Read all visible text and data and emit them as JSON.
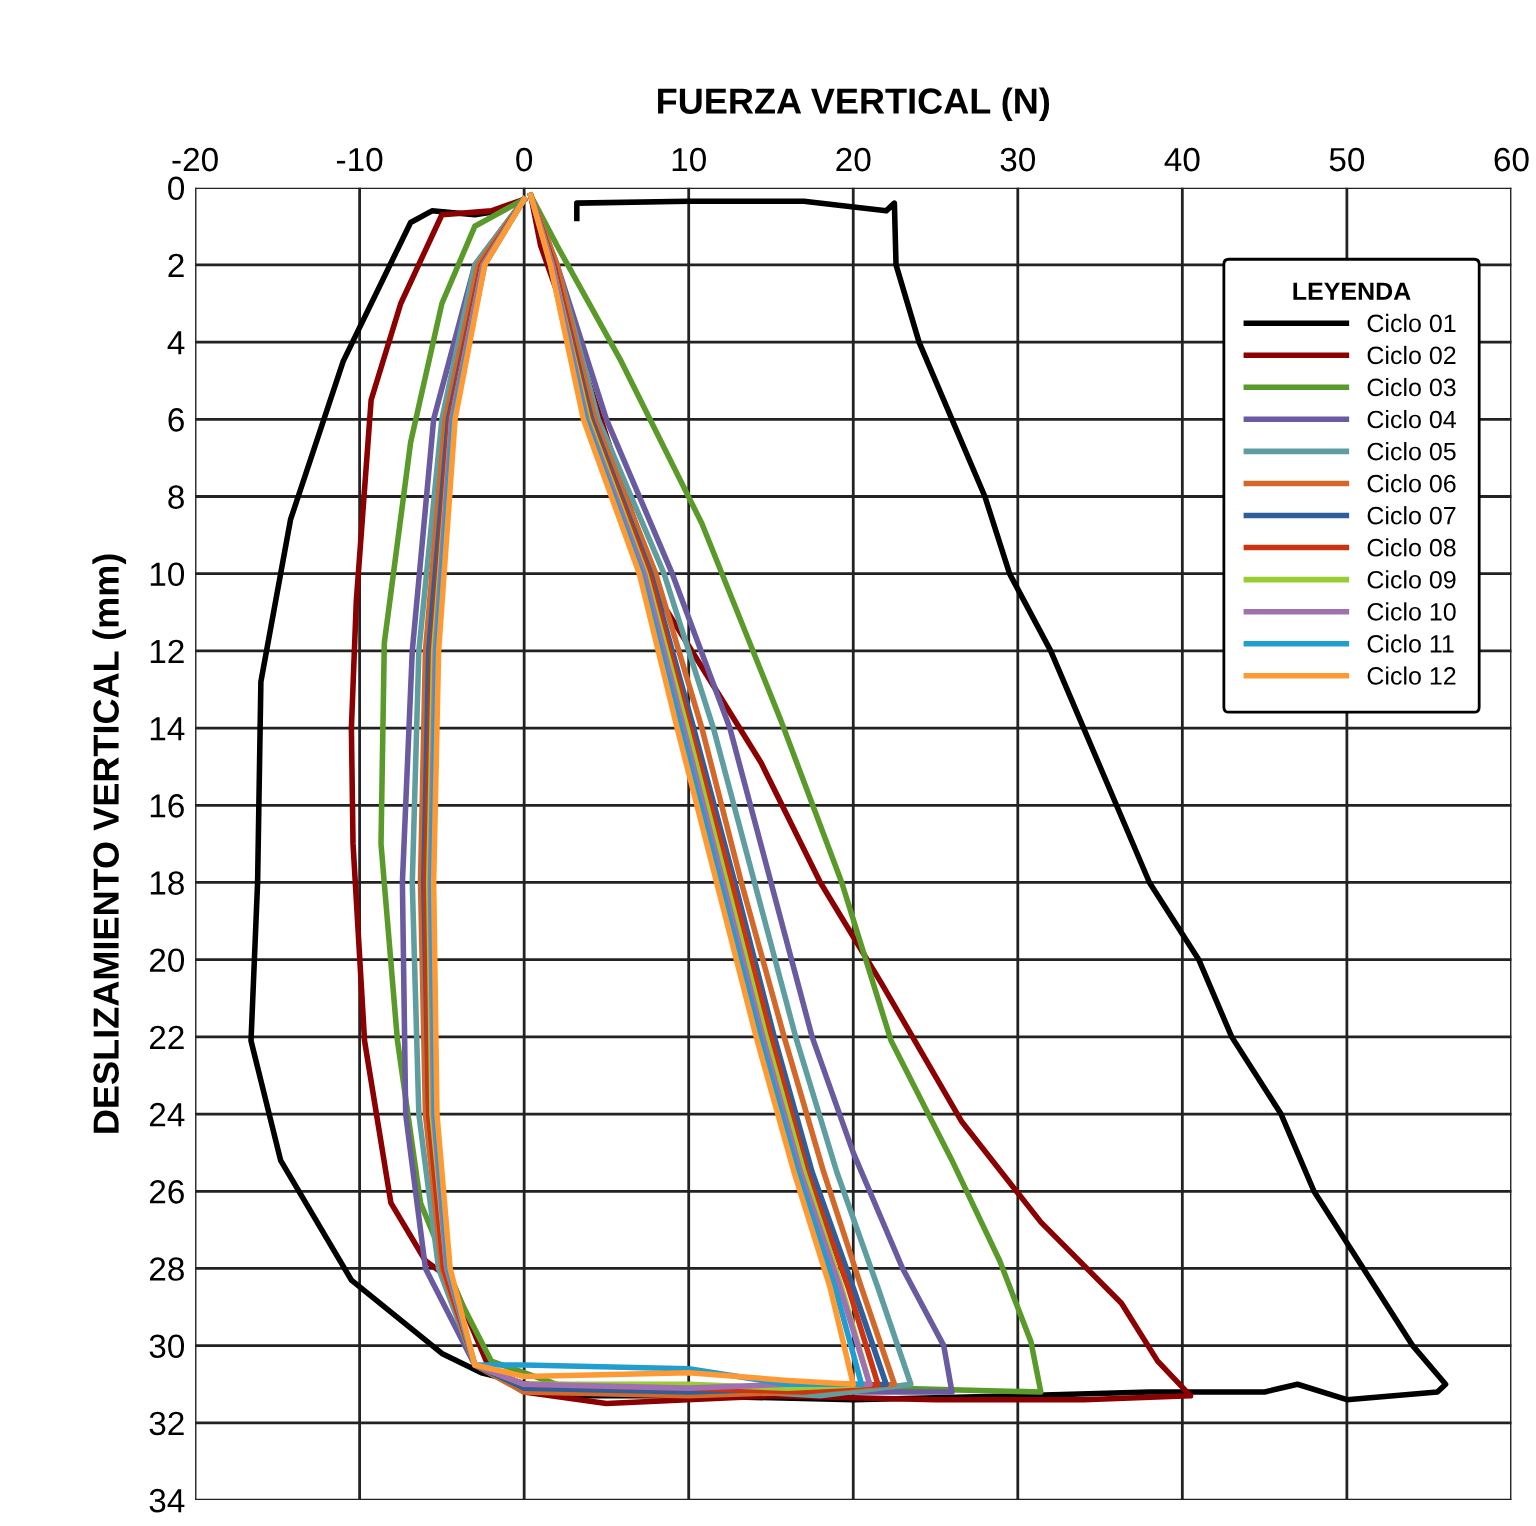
{
  "chart_data": {
    "type": "line",
    "xlabel": "FUERZA VERTICAL (N)",
    "ylabel": "DESLIZAMIENTO VERTICAL (mm)",
    "legend_title": "LEYENDA",
    "xlim": [
      -20,
      60
    ],
    "xticks": [
      -20,
      -10,
      0,
      10,
      20,
      30,
      40,
      50,
      60
    ],
    "ylim": [
      34,
      0
    ],
    "yticks": [
      0,
      2,
      4,
      6,
      8,
      10,
      12,
      14,
      16,
      18,
      20,
      22,
      24,
      26,
      28,
      30,
      32,
      34
    ],
    "grid": true,
    "legend": "top right",
    "marker": "none",
    "line_style": "solid",
    "series": [
      {
        "name": "Ciclo 01",
        "color": "#000000",
        "x": [
          3.2,
          3.2,
          10,
          17,
          22,
          22.5,
          22.6,
          24,
          26,
          28,
          29.5,
          32,
          34,
          36,
          38,
          41,
          43,
          46,
          48,
          51,
          54,
          56,
          55.5,
          50,
          47,
          45,
          38,
          30,
          20,
          10,
          3,
          -2.6,
          -5,
          -10.5,
          -14.8,
          -16.6,
          -16.2,
          -16,
          -14.2,
          -11,
          -6.9,
          -5.6,
          -3,
          -1.5
        ],
        "values": [
          0.8,
          0.4,
          0.35,
          0.35,
          0.6,
          0.4,
          2,
          4,
          6,
          8,
          10,
          12,
          14,
          16,
          18,
          20,
          22,
          24,
          26,
          28,
          30,
          31,
          31.2,
          31.4,
          31,
          31.2,
          31.2,
          31.3,
          31.4,
          31.3,
          31.3,
          30.7,
          30.2,
          28.3,
          25.2,
          22.1,
          18,
          12.8,
          8.6,
          4.5,
          0.9,
          0.6,
          0.7,
          0.6
        ]
      },
      {
        "name": "Ciclo 02",
        "color": "#8b0000",
        "x": [
          0,
          -2,
          -5,
          -7.5,
          -9.3,
          -10.2,
          -10.5,
          -10.4,
          -9.7,
          -8.1,
          -6,
          -4.4,
          -2,
          0,
          5,
          15,
          25,
          34,
          40.5,
          38.5,
          36.3,
          31.4,
          26.6,
          21.7,
          18,
          14.4,
          8.3,
          3.5,
          1,
          0.4
        ],
        "values": [
          0.3,
          0.6,
          0.7,
          3,
          5.5,
          10.7,
          14,
          17,
          22.1,
          26.3,
          27.8,
          28.3,
          30.7,
          31.2,
          31.5,
          31.3,
          31.4,
          31.4,
          31.3,
          30.4,
          28.9,
          26.8,
          24.2,
          20.6,
          18,
          14.9,
          10.7,
          4.5,
          1.5,
          0.2
        ]
      },
      {
        "name": "Ciclo 03",
        "color": "#5a9a2a",
        "x": [
          0,
          -3,
          -5,
          -6.9,
          -8.5,
          -8.7,
          -7.7,
          -6.3,
          -3.8,
          -2,
          2,
          12,
          22,
          31.4,
          30.8,
          28.9,
          26,
          22.3,
          19.3,
          15.6,
          10.8,
          5.9,
          2,
          0.4
        ],
        "values": [
          0.3,
          1,
          3,
          6.6,
          11.8,
          17,
          22.1,
          26.3,
          28.9,
          30.4,
          31,
          31.2,
          31.1,
          31.2,
          29.9,
          27.8,
          25.2,
          22.1,
          18,
          13.8,
          8.7,
          4.5,
          1.5,
          0.2
        ]
      },
      {
        "name": "Ciclo 04",
        "color": "#6a5a9f",
        "x": [
          0,
          -3,
          -5.5,
          -6.8,
          -7.4,
          -7.2,
          -6,
          -3,
          0,
          10,
          20,
          26,
          25.5,
          23,
          20,
          17.5,
          15,
          12.5,
          9,
          5,
          2,
          0.4
        ],
        "values": [
          0.3,
          2,
          6,
          12,
          18,
          24,
          28,
          30.5,
          31,
          31.2,
          31.2,
          31.2,
          30,
          28,
          25,
          22,
          18,
          14,
          10,
          6,
          2,
          0.2
        ]
      },
      {
        "name": "Ciclo 05",
        "color": "#5f9ea0",
        "x": [
          0,
          -3,
          -5,
          -6.4,
          -6.8,
          -6.4,
          -5.2,
          -3,
          0,
          10,
          18,
          23.5,
          21.5,
          19,
          16.5,
          14,
          11.5,
          8.5,
          4.5,
          2,
          0.4
        ],
        "values": [
          0.3,
          2,
          6,
          12,
          18,
          24,
          28,
          30.5,
          31,
          31.1,
          31.3,
          31,
          28.5,
          25.5,
          22,
          18,
          14,
          10,
          6,
          2,
          0.2
        ]
      },
      {
        "name": "Ciclo 06",
        "color": "#d2692a",
        "x": [
          0,
          -2.8,
          -4.8,
          -6,
          -6.3,
          -6,
          -5,
          -3,
          0,
          10,
          17,
          22.5,
          20.5,
          18.2,
          15.8,
          13.2,
          10.8,
          8,
          4.3,
          2,
          0.4
        ],
        "values": [
          0.3,
          2,
          6,
          12,
          18,
          24,
          28,
          30.5,
          31.2,
          31.3,
          31.2,
          31,
          28.5,
          25.5,
          22,
          18,
          14,
          10,
          6,
          2,
          0.2
        ]
      },
      {
        "name": "Ciclo 07",
        "color": "#2e5f9a",
        "x": [
          0,
          -2.6,
          -4.6,
          -5.8,
          -6.1,
          -5.8,
          -4.8,
          -3,
          0,
          10,
          17,
          22,
          20,
          17.5,
          15.2,
          12.8,
          10.3,
          7.7,
          4.1,
          1.8,
          0.4
        ],
        "values": [
          0.3,
          2,
          6,
          12,
          18,
          24,
          28,
          30.5,
          31.1,
          31.2,
          31.1,
          31,
          28.5,
          25.5,
          22,
          18,
          14,
          10,
          6,
          2,
          0.2
        ]
      },
      {
        "name": "Ciclo 08",
        "color": "#cc3311",
        "x": [
          0,
          -2.6,
          -4.5,
          -5.6,
          -6,
          -5.8,
          -4.9,
          -3,
          0,
          10,
          17,
          21.5,
          19.7,
          17.2,
          15,
          12.6,
          10.1,
          7.6,
          4,
          1.8,
          0.4
        ],
        "values": [
          0.3,
          2,
          6,
          12,
          18,
          24,
          28,
          30.5,
          31,
          31.1,
          31.2,
          31,
          28.5,
          25.5,
          22,
          18,
          14,
          10,
          6,
          2,
          0.2
        ]
      },
      {
        "name": "Ciclo 09",
        "color": "#9acd32",
        "x": [
          0,
          -2.5,
          -4.4,
          -5.5,
          -5.8,
          -5.6,
          -4.7,
          -3,
          0,
          10,
          16,
          21,
          19.3,
          17,
          14.7,
          12.3,
          9.9,
          7.4,
          3.9,
          1.7,
          0.4
        ],
        "values": [
          0.3,
          2,
          6,
          12,
          18,
          24,
          28,
          30.5,
          31,
          31,
          31.1,
          31,
          28.5,
          25.5,
          22,
          18,
          14,
          10,
          6,
          2,
          0.2
        ]
      },
      {
        "name": "Ciclo 10",
        "color": "#a070b0",
        "x": [
          0,
          -2.5,
          -4.4,
          -5.4,
          -5.7,
          -5.5,
          -4.7,
          -3,
          0,
          10,
          16,
          21,
          19.2,
          16.8,
          14.5,
          12.1,
          9.7,
          7.3,
          3.8,
          1.7,
          0.4
        ],
        "values": [
          0.3,
          2,
          6,
          12,
          18,
          24,
          28,
          30.5,
          31,
          31.1,
          31,
          31,
          28.5,
          25.5,
          22,
          18,
          14,
          10,
          6,
          2,
          0.2
        ]
      },
      {
        "name": "Ciclo 11",
        "color": "#1f9ecf",
        "x": [
          0,
          -2.4,
          -4.3,
          -5.3,
          -5.6,
          -5.4,
          -4.6,
          -3,
          0,
          10,
          16,
          20.5,
          18.9,
          16.6,
          14.3,
          11.9,
          9.5,
          7.1,
          3.7,
          1.6,
          0.4
        ],
        "values": [
          0.3,
          2,
          6,
          12,
          18,
          24,
          28,
          30.5,
          30.5,
          30.6,
          31,
          31,
          28.5,
          25.5,
          22,
          18,
          14,
          10,
          6,
          2,
          0.2
        ]
      },
      {
        "name": "Ciclo 12",
        "color": "#ff9933",
        "x": [
          0,
          -2.4,
          -4.2,
          -5.2,
          -5.5,
          -5.3,
          -4.5,
          -3,
          0,
          10,
          16,
          20,
          18.6,
          16.4,
          14.1,
          11.7,
          9.3,
          7,
          3.6,
          1.6,
          0.4
        ],
        "values": [
          0.3,
          2,
          6,
          12,
          18,
          24,
          28,
          30.5,
          30.8,
          30.7,
          30.9,
          31,
          28.5,
          25.5,
          22,
          18,
          14,
          10,
          6,
          2,
          0.2
        ]
      }
    ]
  }
}
